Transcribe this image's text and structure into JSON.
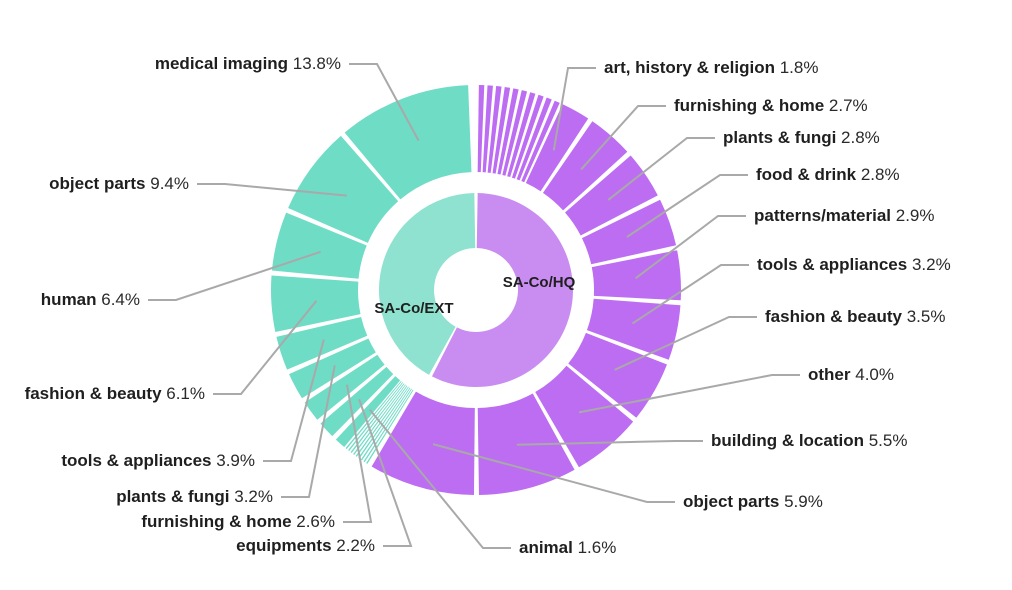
{
  "chart_data": {
    "type": "sunburst",
    "inner": [
      {
        "name": "SA-Co/EXT",
        "color": "#8ee2cf"
      },
      {
        "name": "SA-Co/HQ",
        "color": "#c98df2"
      }
    ],
    "outer_colors": {
      "SA-Co/EXT": "#6fdcc6",
      "SA-Co/HQ": "#bc6df2"
    },
    "labeled_segments": [
      {
        "group": "SA-Co/HQ",
        "category": "art, history & religion",
        "value": 1.8,
        "value_text": "1.8%"
      },
      {
        "group": "SA-Co/HQ",
        "category": "furnishing & home",
        "value": 2.7,
        "value_text": "2.7%"
      },
      {
        "group": "SA-Co/HQ",
        "category": "plants & fungi",
        "value": 2.8,
        "value_text": "2.8%"
      },
      {
        "group": "SA-Co/HQ",
        "category": "food & drink",
        "value": 2.8,
        "value_text": "2.8%"
      },
      {
        "group": "SA-Co/HQ",
        "category": "patterns/material",
        "value": 2.9,
        "value_text": "2.9%"
      },
      {
        "group": "SA-Co/HQ",
        "category": "tools & appliances",
        "value": 3.2,
        "value_text": "3.2%"
      },
      {
        "group": "SA-Co/HQ",
        "category": "fashion & beauty",
        "value": 3.5,
        "value_text": "3.5%"
      },
      {
        "group": "SA-Co/HQ",
        "category": "other",
        "value": 4.0,
        "value_text": "4.0%"
      },
      {
        "group": "SA-Co/HQ",
        "category": "building & location",
        "value": 5.5,
        "value_text": "5.5%"
      },
      {
        "group": "SA-Co/HQ",
        "category": "object parts",
        "value": 5.9,
        "value_text": "5.9%"
      },
      {
        "group": "SA-Co/EXT",
        "category": "animal",
        "value": 1.6,
        "value_text": "1.6%"
      },
      {
        "group": "SA-Co/EXT",
        "category": "equipments",
        "value": 2.2,
        "value_text": "2.2%"
      },
      {
        "group": "SA-Co/EXT",
        "category": "furnishing & home",
        "value": 2.6,
        "value_text": "2.6%"
      },
      {
        "group": "SA-Co/EXT",
        "category": "plants & fungi",
        "value": 3.2,
        "value_text": "3.2%"
      },
      {
        "group": "SA-Co/EXT",
        "category": "tools & appliances",
        "value": 3.9,
        "value_text": "3.9%"
      },
      {
        "group": "SA-Co/EXT",
        "category": "fashion & beauty",
        "value": 6.1,
        "value_text": "6.1%"
      },
      {
        "group": "SA-Co/EXT",
        "category": "human",
        "value": 6.4,
        "value_text": "6.4%"
      },
      {
        "group": "SA-Co/EXT",
        "category": "object parts",
        "value": 9.4,
        "value_text": "9.4%"
      },
      {
        "group": "SA-Co/EXT",
        "category": "medical imaging",
        "value": 13.8,
        "value_text": "13.8%"
      }
    ],
    "small_unlabeled_segments": {
      "SA-Co/HQ": 10,
      "SA-Co/EXT": 9
    }
  }
}
